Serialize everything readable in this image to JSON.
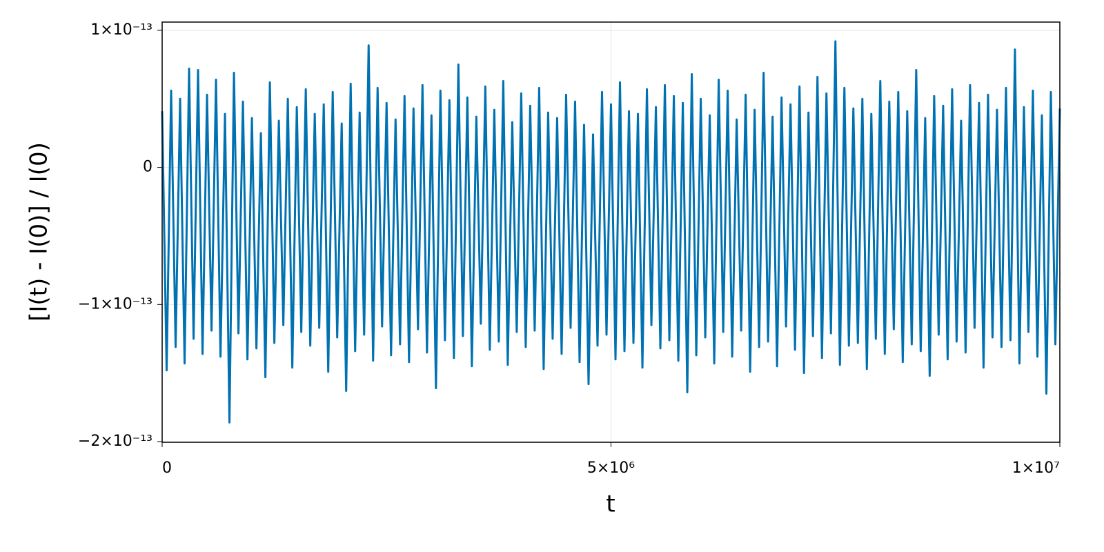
{
  "chart_data": {
    "type": "line",
    "xlabel": "t",
    "ylabel": "[I(t) - I(0)] / I(0)",
    "xlim": [
      0,
      10000000
    ],
    "ylim": [
      -2.005e-13,
      1.06e-13
    ],
    "xticks": [
      0,
      {
        "value": 5000000,
        "label": "5×10⁶"
      },
      {
        "value": 10000000,
        "label": "1×10⁷"
      }
    ],
    "yticks": [
      {
        "value": -2e-13,
        "label": "−2×10⁻¹³"
      },
      {
        "value": -1e-13,
        "label": "−1×10⁻¹³"
      },
      0,
      {
        "value": 1e-13,
        "label": "1×10⁻¹³"
      }
    ],
    "grid": true,
    "x": [
      0,
      50000,
      100000,
      150000,
      200000,
      250000,
      300000,
      350000,
      400000,
      450000,
      500000,
      550000,
      600000,
      650000,
      700000,
      750000,
      800000,
      850000,
      900000,
      950000,
      1000000,
      1050000,
      1100000,
      1150000,
      1200000,
      1250000,
      1300000,
      1350000,
      1400000,
      1450000,
      1500000,
      1550000,
      1600000,
      1650000,
      1700000,
      1750000,
      1800000,
      1850000,
      1900000,
      1950000,
      2000000,
      2050000,
      2100000,
      2150000,
      2200000,
      2250000,
      2300000,
      2350000,
      2400000,
      2450000,
      2500000,
      2550000,
      2600000,
      2650000,
      2700000,
      2750000,
      2800000,
      2850000,
      2900000,
      2950000,
      3000000,
      3050000,
      3100000,
      3150000,
      3200000,
      3250000,
      3300000,
      3350000,
      3400000,
      3450000,
      3500000,
      3550000,
      3600000,
      3650000,
      3700000,
      3750000,
      3800000,
      3850000,
      3900000,
      3950000,
      4000000,
      4050000,
      4100000,
      4150000,
      4200000,
      4250000,
      4300000,
      4350000,
      4400000,
      4450000,
      4500000,
      4550000,
      4600000,
      4650000,
      4700000,
      4750000,
      4800000,
      4850000,
      4900000,
      4950000,
      5000000,
      5050000,
      5100000,
      5150000,
      5200000,
      5250000,
      5300000,
      5350000,
      5400000,
      5450000,
      5500000,
      5550000,
      5600000,
      5650000,
      5700000,
      5750000,
      5800000,
      5850000,
      5900000,
      5950000,
      6000000,
      6050000,
      6100000,
      6150000,
      6200000,
      6250000,
      6300000,
      6350000,
      6400000,
      6450000,
      6500000,
      6550000,
      6600000,
      6650000,
      6700000,
      6750000,
      6800000,
      6850000,
      6900000,
      6950000,
      7000000,
      7050000,
      7100000,
      7150000,
      7200000,
      7250000,
      7300000,
      7350000,
      7400000,
      7450000,
      7500000,
      7550000,
      7600000,
      7650000,
      7700000,
      7750000,
      7800000,
      7850000,
      7900000,
      7950000,
      8000000,
      8050000,
      8100000,
      8150000,
      8200000,
      8250000,
      8300000,
      8350000,
      8400000,
      8450000,
      8500000,
      8550000,
      8600000,
      8650000,
      8700000,
      8750000,
      8800000,
      8850000,
      8900000,
      8950000,
      9000000,
      9050000,
      9100000,
      9150000,
      9200000,
      9250000,
      9300000,
      9350000,
      9400000,
      9450000,
      9500000,
      9550000,
      9600000,
      9650000,
      9700000,
      9750000,
      9800000,
      9850000,
      9900000,
      9950000,
      10000000
    ],
    "series": [
      {
        "color": "#0072b2",
        "values": [
          4.1e-14,
          -1.48e-13,
          5.6e-14,
          -1.31e-13,
          5e-14,
          -1.43e-13,
          7.2e-14,
          -1.25e-13,
          7.1e-14,
          -1.36e-13,
          5.3e-14,
          -1.19e-13,
          6.4e-14,
          -1.38e-13,
          3.9e-14,
          -1.86e-13,
          6.9e-14,
          -1.21e-13,
          4.8e-14,
          -1.4e-13,
          3.6e-14,
          -1.32e-13,
          2.5e-14,
          -1.53e-13,
          6.2e-14,
          -1.28e-13,
          3.4e-14,
          -1.15e-13,
          5e-14,
          -1.46e-13,
          4.4e-14,
          -1.2e-13,
          5.7e-14,
          -1.3e-13,
          3.9e-14,
          -1.17e-13,
          4.6e-14,
          -1.49e-13,
          5.5e-14,
          -1.24e-13,
          3.2e-14,
          -1.63e-13,
          6.1e-14,
          -1.34e-13,
          4e-14,
          -1.22e-13,
          8.9e-14,
          -1.41e-13,
          5.8e-14,
          -1.16e-13,
          4.7e-14,
          -1.37e-13,
          3.5e-14,
          -1.29e-13,
          5.2e-14,
          -1.42e-13,
          4.3e-14,
          -1.18e-13,
          6e-14,
          -1.35e-13,
          3.8e-14,
          -1.61e-13,
          5.6e-14,
          -1.26e-13,
          4.9e-14,
          -1.39e-13,
          7.5e-14,
          -1.23e-13,
          5.1e-14,
          -1.45e-13,
          3.7e-14,
          -1.14e-13,
          5.9e-14,
          -1.33e-13,
          4.2e-14,
          -1.27e-13,
          6.3e-14,
          -1.44e-13,
          3.3e-14,
          -1.2e-13,
          5.4e-14,
          -1.31e-13,
          4.5e-14,
          -1.19e-13,
          5.8e-14,
          -1.47e-13,
          4e-14,
          -1.25e-13,
          3.6e-14,
          -1.36e-13,
          5.3e-14,
          -1.17e-13,
          4.8e-14,
          -1.42e-13,
          3.1e-14,
          -1.58e-13,
          2.4e-14,
          -1.3e-13,
          5.5e-14,
          -1.22e-13,
          4.6e-14,
          -1.4e-13,
          6.2e-14,
          -1.34e-13,
          4.1e-14,
          -1.28e-13,
          3.9e-14,
          -1.46e-13,
          5.7e-14,
          -1.15e-13,
          4.4e-14,
          -1.32e-13,
          6e-14,
          -1.26e-13,
          5.2e-14,
          -1.41e-13,
          4.7e-14,
          -1.64e-13,
          6.8e-14,
          -1.37e-13,
          5e-14,
          -1.24e-13,
          3.8e-14,
          -1.43e-13,
          6.4e-14,
          -1.2e-13,
          5.6e-14,
          -1.38e-13,
          3.5e-14,
          -1.19e-13,
          5.3e-14,
          -1.49e-13,
          4.2e-14,
          -1.31e-13,
          6.9e-14,
          -1.27e-13,
          3.7e-14,
          -1.45e-13,
          5.1e-14,
          -1.16e-13,
          4.6e-14,
          -1.33e-13,
          5.9e-14,
          -1.5e-13,
          4e-14,
          -1.23e-13,
          6.6e-14,
          -1.39e-13,
          5.4e-14,
          -1.21e-13,
          9.2e-14,
          -1.44e-13,
          5.8e-14,
          -1.3e-13,
          4.3e-14,
          -1.28e-13,
          5e-14,
          -1.47e-13,
          3.9e-14,
          -1.25e-13,
          6.3e-14,
          -1.36e-13,
          4.8e-14,
          -1.18e-13,
          5.5e-14,
          -1.42e-13,
          4.1e-14,
          -1.29e-13,
          7.1e-14,
          -1.34e-13,
          3.6e-14,
          -1.52e-13,
          5.2e-14,
          -1.22e-13,
          4.5e-14,
          -1.4e-13,
          5.7e-14,
          -1.27e-13,
          3.4e-14,
          -1.35e-13,
          6e-14,
          -1.17e-13,
          4.7e-14,
          -1.46e-13,
          5.3e-14,
          -1.24e-13,
          4.2e-14,
          -1.31e-13,
          5.8e-14,
          -1.26e-13,
          8.6e-14,
          -1.43e-13,
          4.4e-14,
          -1.2e-13,
          5.6e-14,
          -1.38e-13,
          3.8e-14,
          -1.65e-13,
          5.5e-14,
          -1.29e-13,
          4.3e-14
        ]
      }
    ]
  }
}
